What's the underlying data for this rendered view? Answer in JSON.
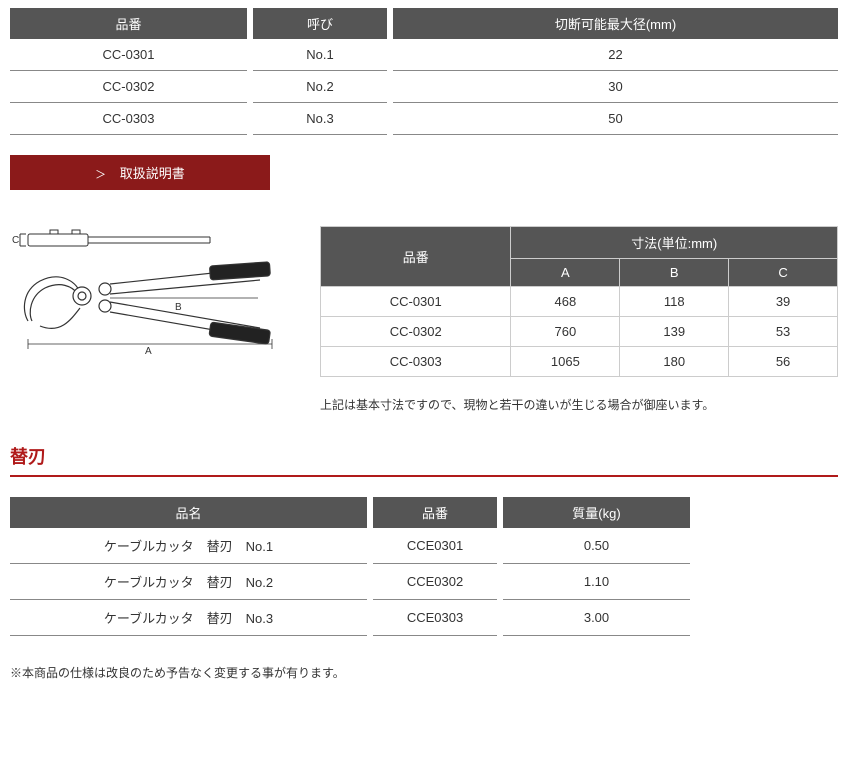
{
  "colors": {
    "header_bg": "#555555",
    "header_fg": "#ffffff",
    "accent": "#8b1a1a",
    "accent_title": "#b01a1a",
    "row_border": "#888888"
  },
  "table1": {
    "headers": [
      "品番",
      "呼び",
      "切断可能最大径(mm)"
    ],
    "rows": [
      [
        "CC-0301",
        "No.1",
        "22"
      ],
      [
        "CC-0302",
        "No.2",
        "30"
      ],
      [
        "CC-0303",
        "No.3",
        "50"
      ]
    ]
  },
  "manual_button": {
    "chevron": "＞",
    "label": "取扱説明書"
  },
  "diagram": {
    "labels": {
      "A": "A",
      "B": "B",
      "C": "C"
    }
  },
  "table2": {
    "pn_header": "品番",
    "dim_header": "寸法(単位:mm)",
    "cols": [
      "A",
      "B",
      "C"
    ],
    "rows": [
      [
        "CC-0301",
        "468",
        "118",
        "39"
      ],
      [
        "CC-0302",
        "760",
        "139",
        "53"
      ],
      [
        "CC-0303",
        "1065",
        "180",
        "56"
      ]
    ]
  },
  "dim_note": "上記は基本寸法ですので、現物と若干の違いが生じる場合が御座います。",
  "section_title": "替刃",
  "table3": {
    "headers": [
      "品名",
      "品番",
      "質量(kg)"
    ],
    "rows": [
      [
        "ケーブルカッタ　替刃　No.1",
        "CCE0301",
        "0.50"
      ],
      [
        "ケーブルカッタ　替刃　No.2",
        "CCE0302",
        "1.10"
      ],
      [
        "ケーブルカッタ　替刃　No.3",
        "CCE0303",
        "3.00"
      ]
    ]
  },
  "footnote": "※本商品の仕様は改良のため予告なく変更する事が有ります。"
}
